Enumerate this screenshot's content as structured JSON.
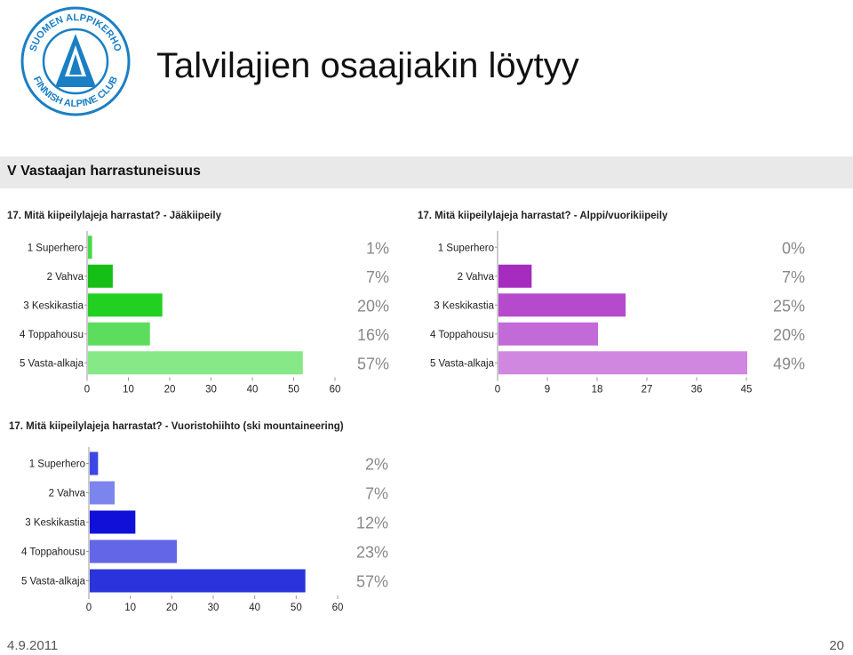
{
  "slide": {
    "title": "Talvilajien osaajiakin löytyy",
    "date": "4.9.2011",
    "page_number": "20"
  },
  "logo": {
    "text_top": "SUOMEN ALPPIKERHO",
    "text_bottom": "FINNISH ALPINE CLUB",
    "color": "#1a7fc4"
  },
  "section": {
    "title": "V Vastaajan harrastuneisuus"
  },
  "chart_data": [
    {
      "type": "bar",
      "orientation": "horizontal",
      "title": "17. Mitä kiipeilylajeja harrastat? - Jääkiipeily",
      "categories": [
        "1 Superhero",
        "2 Vahva",
        "3 Keskikastia",
        "4 Toppahousu",
        "5 Vasta-alkaja"
      ],
      "values": [
        1,
        6,
        18,
        15,
        52
      ],
      "percent_labels": [
        "1%",
        "7%",
        "20%",
        "16%",
        "57%"
      ],
      "xlim": [
        0,
        60
      ],
      "xticks": [
        0,
        10,
        20,
        30,
        40,
        50,
        60
      ],
      "colors": [
        "#4bd84b",
        "#16bf16",
        "#22d022",
        "#5ddd5d",
        "#86e886"
      ],
      "grid": false
    },
    {
      "type": "bar",
      "orientation": "horizontal",
      "title": "17. Mitä kiipeilylajeja harrastat? - Alppi/vuorikiipeily",
      "categories": [
        "1 Superhero",
        "2 Vahva",
        "3 Keskikastia",
        "4 Toppahousu",
        "5 Vasta-alkaja"
      ],
      "values": [
        0,
        6,
        23,
        18,
        45
      ],
      "percent_labels": [
        "0%",
        "7%",
        "25%",
        "20%",
        "49%"
      ],
      "xlim": [
        0,
        45
      ],
      "xticks": [
        0,
        9,
        18,
        27,
        36,
        45
      ],
      "colors": [
        "#b34fd0",
        "#a52cbf",
        "#b54acd",
        "#c26ad8",
        "#d087e0"
      ],
      "grid": false
    },
    {
      "type": "bar",
      "orientation": "horizontal",
      "title": "17. Mitä kiipeilylajeja harrastat? - Vuoristohiihto (ski mountaineering)",
      "categories": [
        "1 Superhero",
        "2 Vahva",
        "3 Keskikastia",
        "4 Toppahousu",
        "5 Vasta-alkaja"
      ],
      "values": [
        2,
        6,
        11,
        21,
        52
      ],
      "percent_labels": [
        "2%",
        "7%",
        "12%",
        "23%",
        "57%"
      ],
      "xlim": [
        0,
        60
      ],
      "xticks": [
        0,
        10,
        20,
        30,
        40,
        50,
        60
      ],
      "colors": [
        "#3d46e6",
        "#7c84ee",
        "#1010d8",
        "#6466e8",
        "#2a33dc"
      ],
      "grid": false
    }
  ]
}
